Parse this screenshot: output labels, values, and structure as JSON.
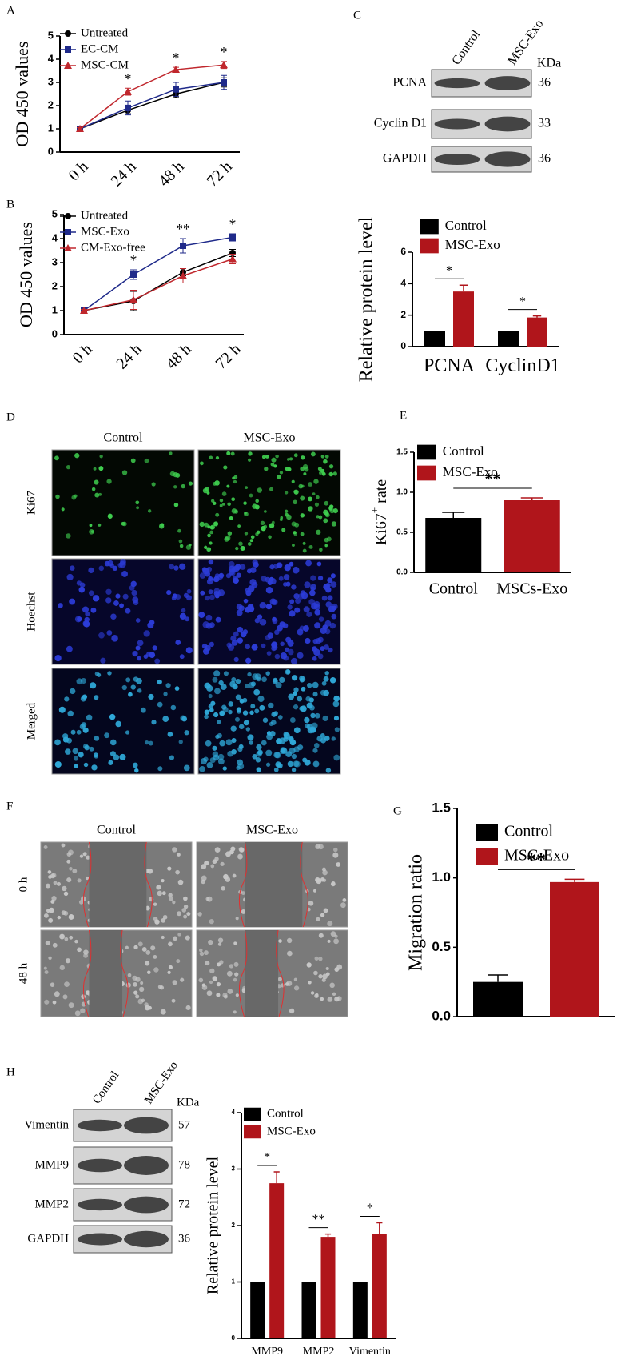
{
  "panel_letters": [
    "A",
    "B",
    "C",
    "D",
    "E",
    "F",
    "G",
    "H"
  ],
  "blot_c": {
    "columns": [
      "Control",
      "MSC-Exo"
    ],
    "unit": "KDa",
    "rows": [
      {
        "label": "PCNA",
        "kda": 36
      },
      {
        "label": "Cyclin D1",
        "kda": 33
      },
      {
        "label": "GAPDH",
        "kda": 36
      }
    ]
  },
  "images_d": {
    "columns": [
      "Control",
      "MSC-Exo"
    ],
    "rows": [
      "Ki67",
      "Hoechst",
      "Merged"
    ]
  },
  "images_f": {
    "columns": [
      "Control",
      "MSC-Exo"
    ],
    "rows": [
      "0 h",
      "48 h"
    ]
  },
  "blot_h": {
    "columns": [
      "Control",
      "MSC-Exo"
    ],
    "unit": "KDa",
    "rows": [
      {
        "label": "Vimentin",
        "kda": 57
      },
      {
        "label": "MMP9",
        "kda": 78
      },
      {
        "label": "MMP2",
        "kda": 72
      },
      {
        "label": "GAPDH",
        "kda": 36
      }
    ]
  },
  "chart_data": [
    {
      "type": "line",
      "y_label": "OD 450 values",
      "categories": [
        "0 h",
        "24 h",
        "48 h",
        "72 h"
      ],
      "ylim": [
        0,
        5
      ],
      "yticks": [
        0,
        1,
        2,
        3,
        4,
        5
      ],
      "annotations": [
        null,
        "*",
        "*",
        "*"
      ],
      "legend": "upper left",
      "series": [
        {
          "name": "Untreated",
          "color": "#000000",
          "marker": "circle",
          "values": [
            1,
            1.8,
            2.5,
            3.0
          ],
          "errors": [
            0.05,
            0.15,
            0.15,
            0.2
          ]
        },
        {
          "name": "EC-CM",
          "color": "#1f2a8a",
          "marker": "square",
          "values": [
            1,
            1.9,
            2.7,
            3.0
          ],
          "errors": [
            0.05,
            0.3,
            0.3,
            0.3
          ]
        },
        {
          "name": "MSC-CM",
          "color": "#c0272d",
          "marker": "triangle",
          "values": [
            1,
            2.6,
            3.55,
            3.75
          ],
          "errors": [
            0.05,
            0.15,
            0.1,
            0.15
          ]
        }
      ]
    },
    {
      "type": "line",
      "y_label": "OD 450 values",
      "categories": [
        "0 h",
        "24 h",
        "48 h",
        "72 h"
      ],
      "ylim": [
        0,
        5
      ],
      "yticks": [
        0,
        1,
        2,
        3,
        4,
        5
      ],
      "annotations": [
        null,
        "*",
        "**",
        "*"
      ],
      "legend": "upper left",
      "series": [
        {
          "name": "Untreated",
          "color": "#000000",
          "marker": "circle",
          "values": [
            1,
            1.4,
            2.6,
            3.4
          ],
          "errors": [
            0.05,
            0.4,
            0.15,
            0.15
          ]
        },
        {
          "name": "MSC-Exo",
          "color": "#1f2a8a",
          "marker": "square",
          "values": [
            1,
            2.5,
            3.7,
            4.05
          ],
          "errors": [
            0.05,
            0.2,
            0.3,
            0.15
          ]
        },
        {
          "name": "CM-Exo-free",
          "color": "#c0272d",
          "marker": "triangle",
          "values": [
            1,
            1.45,
            2.45,
            3.15
          ],
          "errors": [
            0.05,
            0.4,
            0.3,
            0.2
          ]
        }
      ]
    },
    {
      "type": "bar",
      "y_label": "Relative protein level",
      "categories": [
        "PCNA",
        "CyclinD1"
      ],
      "ylim": [
        0,
        6
      ],
      "yticks": [
        0,
        2,
        4,
        6
      ],
      "annotations": [
        "*",
        "*"
      ],
      "legend": "upper left",
      "series": [
        {
          "name": "Control",
          "color": "#000000",
          "values": [
            1,
            1
          ],
          "errors": [
            0,
            0
          ]
        },
        {
          "name": "MSC-Exo",
          "color": "#b0151b",
          "values": [
            3.5,
            1.85
          ],
          "errors": [
            0.4,
            0.1
          ]
        }
      ]
    },
    {
      "type": "bar",
      "y_label": [
        "Ki67",
        "+",
        "rate"
      ],
      "categories": [
        "Control",
        "MSCs-Exo"
      ],
      "ylim": [
        0,
        1.5
      ],
      "yticks": [
        {
          "value": 0,
          "label": "0.0"
        },
        {
          "value": 0.5,
          "label": "0.5"
        },
        {
          "value": 1,
          "label": "1.0"
        },
        {
          "value": 1.5,
          "label": "1.5"
        }
      ],
      "significance": "**",
      "legend": "upper left",
      "series": [
        {
          "name": "Control",
          "color": "#000000",
          "values": [
            0.68,
            null
          ],
          "errors": [
            0.07,
            null
          ]
        },
        {
          "name": "MSC-Exo",
          "color": "#b0151b",
          "values": [
            null,
            0.9
          ],
          "errors": [
            null,
            0.03
          ]
        }
      ]
    },
    {
      "type": "bar",
      "y_label": "Migration ratio",
      "categories": [
        null
      ],
      "ylim": [
        0,
        1.5
      ],
      "yticks": [
        {
          "value": 0,
          "label": "0.0"
        },
        {
          "value": 0.5,
          "label": "0.5"
        },
        {
          "value": 1,
          "label": "1.0"
        },
        {
          "value": 1.5,
          "label": "1.5"
        }
      ],
      "significance": "**",
      "legend": "upper right",
      "series": [
        {
          "name": "Control",
          "color": "#000000",
          "values": [
            0.25
          ],
          "errors": [
            0.05
          ]
        },
        {
          "name": "MSC-Exo",
          "color": "#b0151b",
          "values": [
            0.97
          ],
          "errors": [
            0.02
          ]
        }
      ]
    },
    {
      "type": "bar",
      "y_label": "Relative protein level",
      "categories": [
        "MMP9",
        "MMP2",
        "Vimentin"
      ],
      "ylim": [
        0,
        4
      ],
      "yticks": [
        0,
        1,
        2,
        3,
        4
      ],
      "annotations": [
        "*",
        "**",
        "*"
      ],
      "legend": "upper left",
      "series": [
        {
          "name": "Control",
          "color": "#000000",
          "values": [
            1,
            1,
            1
          ],
          "errors": [
            0,
            0,
            0
          ]
        },
        {
          "name": "MSC-Exo",
          "color": "#b0151b",
          "values": [
            2.75,
            1.8,
            1.85
          ],
          "errors": [
            0.2,
            0.05,
            0.2
          ]
        }
      ]
    }
  ]
}
